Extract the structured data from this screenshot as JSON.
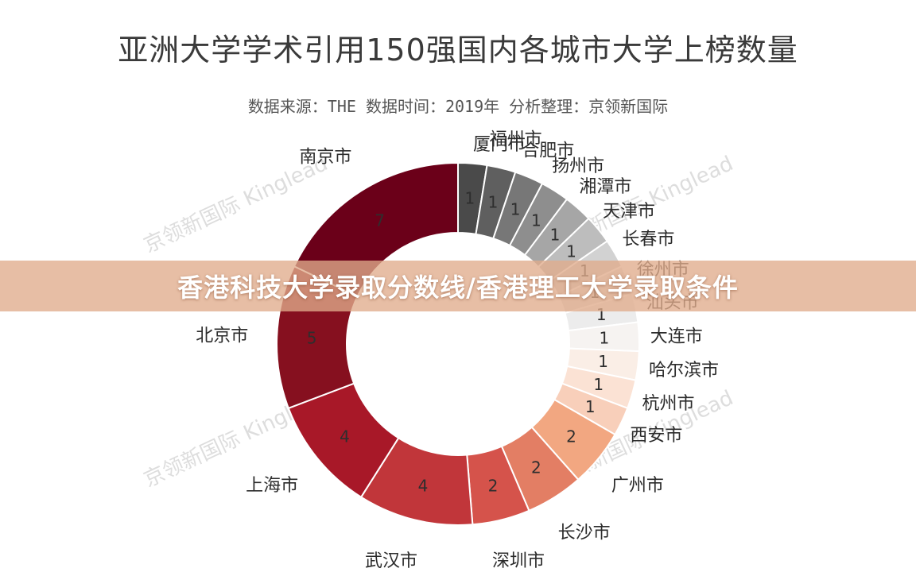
{
  "chart_data": {
    "type": "pie",
    "donut": true,
    "title": "亚洲大学学术引用150强国内各城市大学上榜数量",
    "subtitle": "数据来源：THE 数据时间：2019年 分析整理：京领新国际",
    "categories": [
      "厦门市",
      "福州市",
      "合肥市",
      "扬州市",
      "湘潭市",
      "天津市",
      "长春市",
      "徐州市",
      "汕头市",
      "大连市",
      "哈尔滨市",
      "杭州市",
      "西安市",
      "广州市",
      "长沙市",
      "深圳市",
      "武汉市",
      "上海市",
      "北京市",
      "南京市"
    ],
    "values": [
      1,
      1,
      1,
      1,
      1,
      1,
      1,
      1,
      1,
      1,
      1,
      1,
      1,
      2,
      2,
      2,
      4,
      4,
      5,
      7
    ],
    "colors": [
      "#4a4a4a",
      "#5f5f5f",
      "#777777",
      "#8e8e8e",
      "#a6a6a6",
      "#bdbdbd",
      "#d2d2d2",
      "#e1e1e1",
      "#ececec",
      "#f6f3f1",
      "#faeee6",
      "#fbe2d4",
      "#f8cfba",
      "#f2a781",
      "#e37e64",
      "#d5534b",
      "#c1363a",
      "#a81828",
      "#86101f",
      "#6b0019"
    ]
  },
  "watermark": "京领新国际 Kinglead",
  "overlay": {
    "text": "香港科技大学录取分数线/香港理工大学录取条件"
  }
}
